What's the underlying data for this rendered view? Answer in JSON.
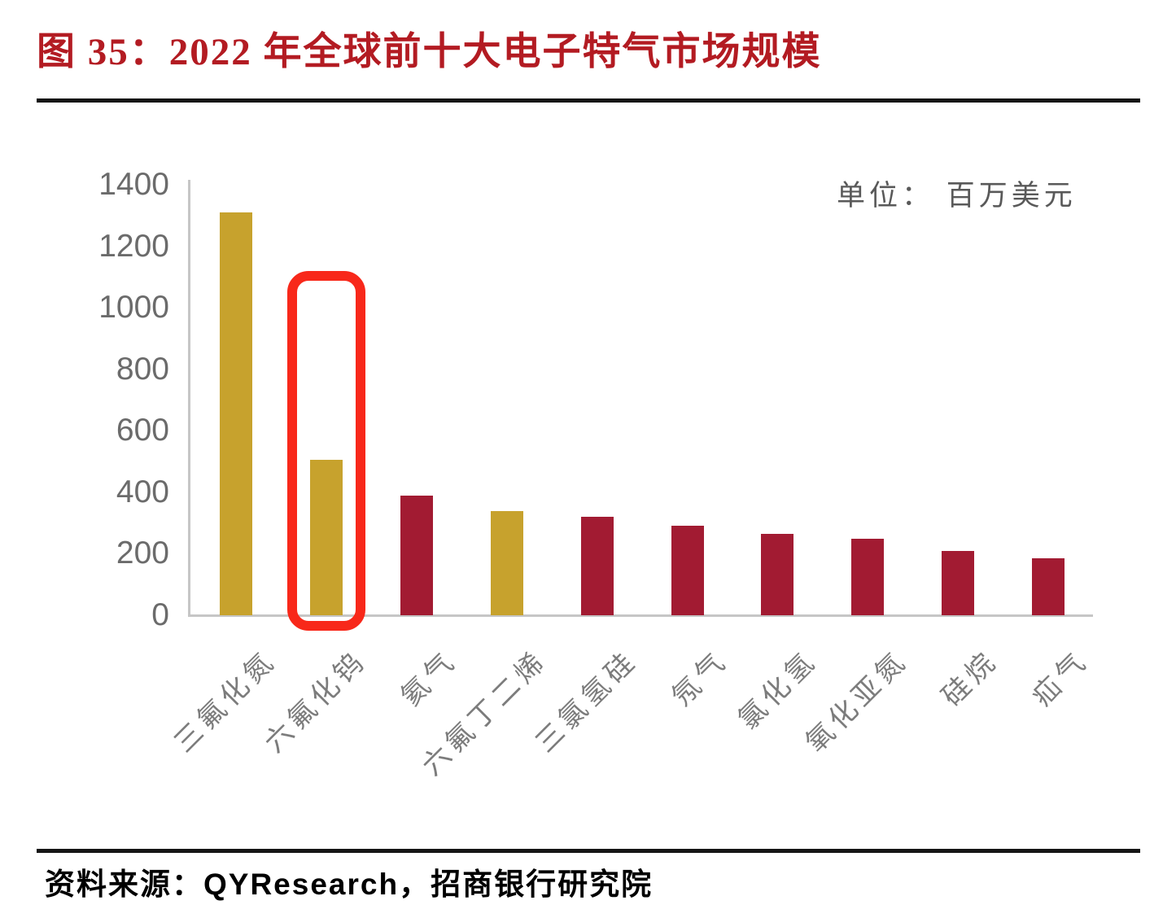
{
  "figure": {
    "title": "图 35：2022 年全球前十大电子特气市场规模",
    "source_label": "资料来源：QYResearch，招商银行研究院"
  },
  "chart_data": {
    "type": "bar",
    "title": "2022 年全球前十大电子特气市场规模",
    "unit_label": "单位： 百万美元",
    "xlabel": "",
    "ylabel": "",
    "categories": [
      "三氟化氮",
      "六氟化钨",
      "氦气",
      "六氟丁二烯",
      "三氯氢硅",
      "氖气",
      "氯化氢",
      "氧化亚氮",
      "硅烷",
      "疝气"
    ],
    "values": [
      1310,
      505,
      390,
      340,
      320,
      290,
      265,
      250,
      210,
      185
    ],
    "ylim": [
      0,
      1400
    ],
    "yticks": [
      0,
      200,
      400,
      600,
      800,
      1000,
      1200,
      1400
    ],
    "grid": false,
    "legend": null,
    "bar_colors": [
      "#C7A22D",
      "#C7A22D",
      "#A21B32",
      "#C7A22D",
      "#A21B32",
      "#A21B32",
      "#A21B32",
      "#A21B32",
      "#A21B32",
      "#A21B32"
    ],
    "highlight": {
      "category_index": 1,
      "box_color": "#F8281A"
    }
  },
  "colors": {
    "title_red": "#B31B22",
    "gold": "#C7A22D",
    "crimson": "#A21B32",
    "highlight_red": "#F8281A",
    "axis_text": "#6B6B6B",
    "unit_text": "#595959",
    "category_text": "#7C7C7C",
    "source_text": "#000000",
    "rule": "#151515"
  }
}
